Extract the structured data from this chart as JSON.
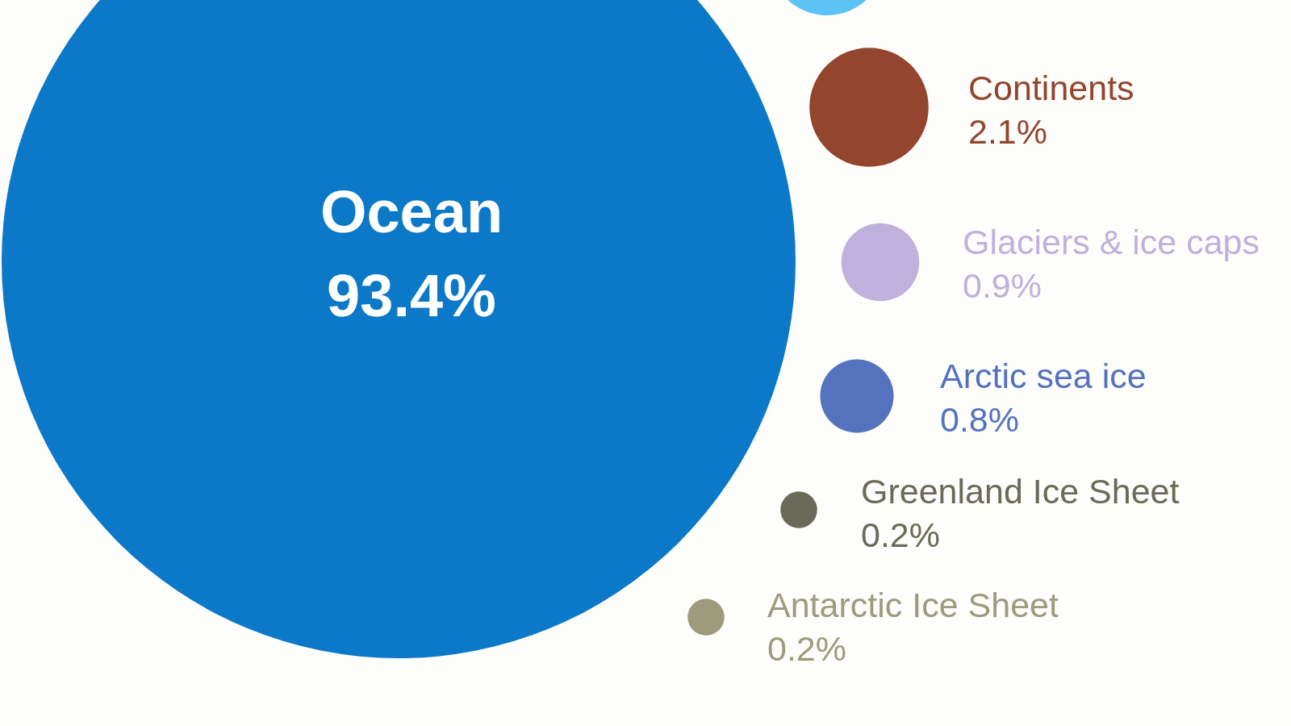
{
  "chart_data": {
    "type": "other",
    "categories": [
      "Ocean",
      "Continents",
      "Glaciers & ice caps",
      "Arctic sea ice",
      "Greenland Ice Sheet",
      "Antarctic Ice Sheet"
    ],
    "values": [
      93.4,
      2.1,
      0.9,
      0.8,
      0.2,
      0.2
    ],
    "value_labels": [
      "93.4%",
      "2.1%",
      "0.9%",
      "0.8%",
      "0.2%",
      "0.2%"
    ],
    "colors": [
      "#0b78c8",
      "#93452d",
      "#c0b0dc",
      "#5472bd",
      "#6b6a58",
      "#9e9a7c"
    ]
  }
}
